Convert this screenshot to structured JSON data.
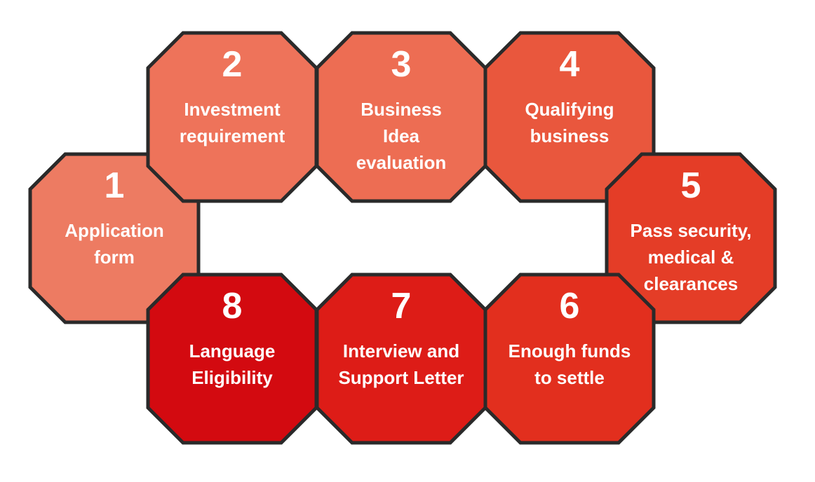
{
  "steps": [
    {
      "number": "1",
      "lines": [
        "Application",
        "form"
      ],
      "color": "#ED7B62"
    },
    {
      "number": "2",
      "lines": [
        "Investment",
        "requirement"
      ],
      "color": "#EE735A"
    },
    {
      "number": "3",
      "lines": [
        "Business",
        "Idea",
        "evaluation"
      ],
      "color": "#ED6D53"
    },
    {
      "number": "4",
      "lines": [
        "Qualifying",
        "business"
      ],
      "color": "#E9573D"
    },
    {
      "number": "5",
      "lines": [
        "Pass security,",
        "medical &",
        "clearances"
      ],
      "color": "#E43D27"
    },
    {
      "number": "6",
      "lines": [
        "Enough funds",
        "to settle"
      ],
      "color": "#E22F1E"
    },
    {
      "number": "7",
      "lines": [
        "Interview and",
        "Support Letter"
      ],
      "color": "#DD1C17"
    },
    {
      "number": "8",
      "lines": [
        "Language",
        "Eligibility"
      ],
      "color": "#D30A10"
    }
  ],
  "border_color": "#2a2a2a"
}
